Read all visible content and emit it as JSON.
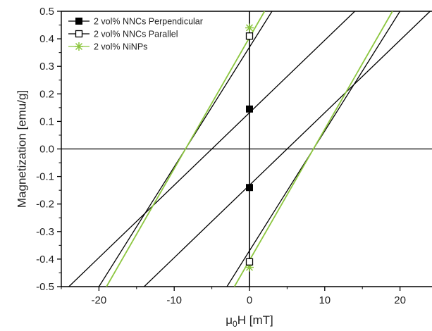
{
  "chart_data": {
    "type": "line",
    "title": "",
    "xlabel": "μ0H [mT]",
    "ylabel": "Magnetization [emu/g]",
    "xlim": [
      -25,
      25
    ],
    "ylim": [
      -0.5,
      0.5
    ],
    "x_ticks": [
      -20,
      -10,
      0,
      10,
      20
    ],
    "x_tick_labels": [
      "-20",
      "-10",
      "0",
      "10",
      "20"
    ],
    "y_ticks": [
      -0.5,
      -0.4,
      -0.3,
      -0.2,
      -0.1,
      0.0,
      0.1,
      0.2,
      0.3,
      0.4,
      0.5
    ],
    "y_tick_labels": [
      "-0.5",
      "-0.4",
      "-0.3",
      "-0.2",
      "-0.1",
      "0.0",
      "0.1",
      "0.2",
      "0.3",
      "0.4",
      "0.5"
    ],
    "grid": false,
    "legend_position": "top-left",
    "series": [
      {
        "name": "2 vol% NNCs Perpendicular",
        "color": "#000000",
        "marker": "filled-square",
        "segments": [
          {
            "x": [
              -14,
              24
            ],
            "y": [
              -0.5,
              0.5
            ]
          },
          {
            "x": [
              -24,
              14
            ],
            "y": [
              -0.5,
              0.5
            ]
          }
        ],
        "points": [
          {
            "x": 0,
            "y": 0.145
          },
          {
            "x": 0,
            "y": -0.14
          }
        ]
      },
      {
        "name": "2 vol% NNCs Parallel",
        "color": "#000000",
        "marker": "open-square",
        "segments": [
          {
            "x": [
              -3,
              20
            ],
            "y": [
              -0.5,
              0.5
            ]
          },
          {
            "x": [
              -20,
              3
            ],
            "y": [
              -0.5,
              0.5
            ]
          }
        ],
        "points": [
          {
            "x": 0,
            "y": 0.41
          },
          {
            "x": 0,
            "y": -0.41
          }
        ]
      },
      {
        "name": "2 vol% NiNPs",
        "color": "#8cc63f",
        "marker": "star",
        "segments": [
          {
            "x": [
              -2,
              19
            ],
            "y": [
              -0.5,
              0.5
            ]
          },
          {
            "x": [
              -19,
              2
            ],
            "y": [
              -0.5,
              0.5
            ]
          }
        ],
        "points": [
          {
            "x": 0,
            "y": 0.44
          },
          {
            "x": 0,
            "y": -0.43
          }
        ]
      }
    ]
  },
  "colors": {
    "axis": "#000000",
    "perpendicular": "#000000",
    "parallel": "#000000",
    "ninps": "#8cc63f"
  }
}
